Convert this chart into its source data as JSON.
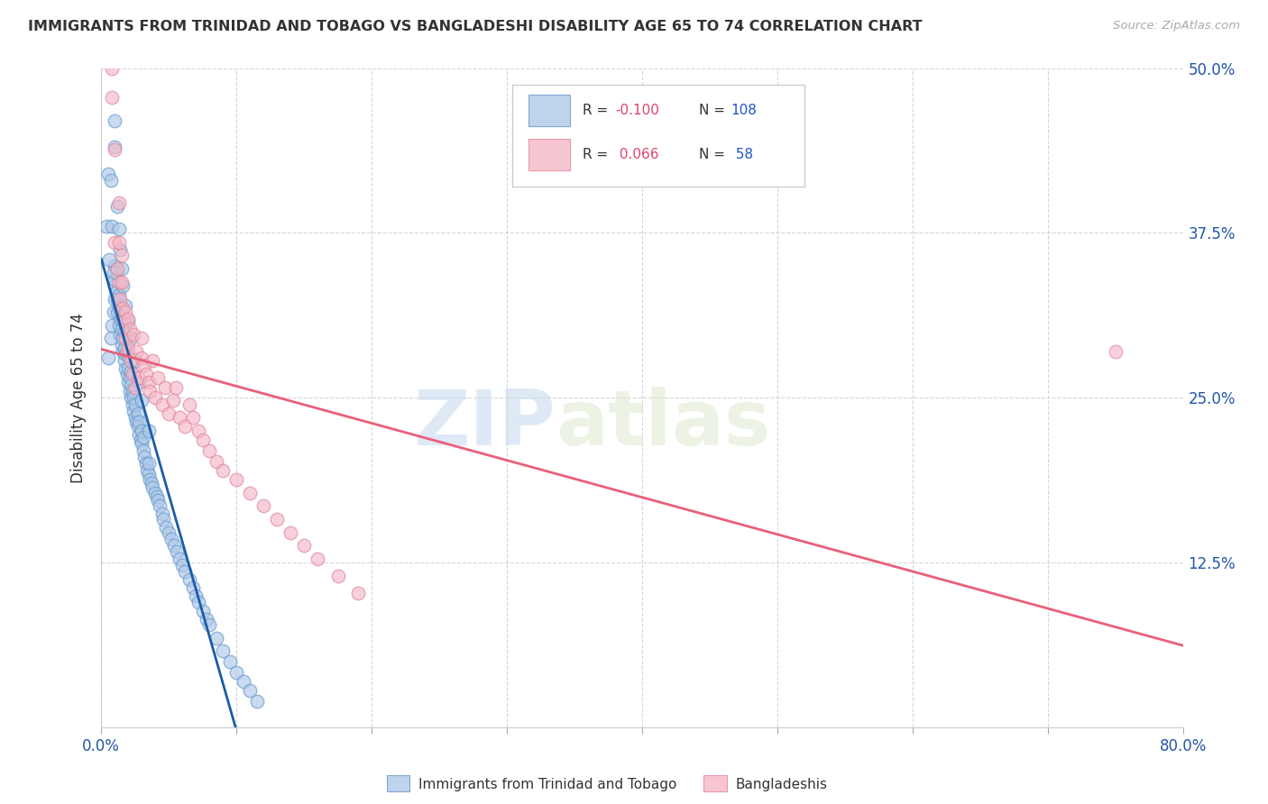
{
  "title": "IMMIGRANTS FROM TRINIDAD AND TOBAGO VS BANGLADESHI DISABILITY AGE 65 TO 74 CORRELATION CHART",
  "source": "Source: ZipAtlas.com",
  "ylabel": "Disability Age 65 to 74",
  "xlim": [
    0.0,
    0.8
  ],
  "ylim": [
    0.0,
    0.5
  ],
  "blue_color": "#aec8e8",
  "blue_edge_color": "#6699cc",
  "pink_color": "#f5b8c8",
  "pink_edge_color": "#e08898",
  "blue_line_color": "#1a5ca8",
  "blue_dash_color": "#99bbdd",
  "pink_line_color": "#e8607a",
  "r_blue_text": "-0.100",
  "n_blue_text": "108",
  "r_pink_text": "0.066",
  "n_pink_text": "58",
  "blue_scatter_x": [
    0.005,
    0.007,
    0.008,
    0.009,
    0.01,
    0.01,
    0.01,
    0.01,
    0.011,
    0.011,
    0.012,
    0.012,
    0.013,
    0.013,
    0.013,
    0.014,
    0.014,
    0.014,
    0.015,
    0.015,
    0.015,
    0.016,
    0.016,
    0.016,
    0.017,
    0.017,
    0.017,
    0.018,
    0.018,
    0.019,
    0.02,
    0.02,
    0.02,
    0.021,
    0.021,
    0.022,
    0.022,
    0.022,
    0.023,
    0.023,
    0.024,
    0.024,
    0.025,
    0.025,
    0.026,
    0.027,
    0.027,
    0.028,
    0.028,
    0.029,
    0.03,
    0.03,
    0.031,
    0.031,
    0.032,
    0.033,
    0.034,
    0.035,
    0.035,
    0.036,
    0.037,
    0.038,
    0.04,
    0.041,
    0.042,
    0.043,
    0.045,
    0.046,
    0.048,
    0.05,
    0.052,
    0.054,
    0.056,
    0.058,
    0.06,
    0.062,
    0.065,
    0.068,
    0.07,
    0.072,
    0.075,
    0.078,
    0.08,
    0.085,
    0.09,
    0.095,
    0.1,
    0.105,
    0.11,
    0.115,
    0.004,
    0.005,
    0.006,
    0.007,
    0.008,
    0.009,
    0.01,
    0.01,
    0.012,
    0.013,
    0.014,
    0.015,
    0.016,
    0.018,
    0.02,
    0.022,
    0.025,
    0.028,
    0.03,
    0.035
  ],
  "blue_scatter_y": [
    0.28,
    0.295,
    0.305,
    0.315,
    0.325,
    0.335,
    0.34,
    0.35,
    0.33,
    0.345,
    0.315,
    0.325,
    0.305,
    0.318,
    0.328,
    0.298,
    0.31,
    0.32,
    0.29,
    0.302,
    0.312,
    0.285,
    0.295,
    0.308,
    0.278,
    0.288,
    0.3,
    0.272,
    0.283,
    0.268,
    0.262,
    0.272,
    0.282,
    0.255,
    0.265,
    0.25,
    0.26,
    0.27,
    0.245,
    0.255,
    0.24,
    0.25,
    0.235,
    0.245,
    0.232,
    0.228,
    0.238,
    0.222,
    0.232,
    0.218,
    0.215,
    0.225,
    0.21,
    0.22,
    0.205,
    0.2,
    0.195,
    0.192,
    0.2,
    0.188,
    0.185,
    0.182,
    0.178,
    0.175,
    0.172,
    0.168,
    0.162,
    0.158,
    0.152,
    0.148,
    0.143,
    0.138,
    0.133,
    0.128,
    0.123,
    0.118,
    0.112,
    0.106,
    0.1,
    0.095,
    0.088,
    0.082,
    0.078,
    0.068,
    0.058,
    0.05,
    0.042,
    0.035,
    0.028,
    0.02,
    0.38,
    0.42,
    0.355,
    0.415,
    0.38,
    0.345,
    0.44,
    0.46,
    0.395,
    0.378,
    0.362,
    0.348,
    0.335,
    0.32,
    0.308,
    0.295,
    0.278,
    0.262,
    0.248,
    0.225
  ],
  "pink_scatter_x": [
    0.008,
    0.01,
    0.01,
    0.012,
    0.013,
    0.013,
    0.013,
    0.014,
    0.015,
    0.015,
    0.016,
    0.017,
    0.018,
    0.018,
    0.019,
    0.02,
    0.02,
    0.021,
    0.022,
    0.023,
    0.024,
    0.025,
    0.026,
    0.028,
    0.03,
    0.03,
    0.032,
    0.033,
    0.035,
    0.036,
    0.038,
    0.04,
    0.042,
    0.045,
    0.047,
    0.05,
    0.053,
    0.055,
    0.058,
    0.062,
    0.065,
    0.068,
    0.072,
    0.075,
    0.08,
    0.085,
    0.09,
    0.1,
    0.11,
    0.12,
    0.13,
    0.14,
    0.15,
    0.16,
    0.175,
    0.19,
    0.75,
    0.008
  ],
  "pink_scatter_y": [
    0.478,
    0.438,
    0.368,
    0.348,
    0.398,
    0.368,
    0.338,
    0.325,
    0.358,
    0.338,
    0.318,
    0.308,
    0.295,
    0.315,
    0.285,
    0.31,
    0.288,
    0.302,
    0.278,
    0.268,
    0.298,
    0.258,
    0.285,
    0.265,
    0.28,
    0.295,
    0.275,
    0.268,
    0.262,
    0.255,
    0.278,
    0.25,
    0.265,
    0.245,
    0.258,
    0.238,
    0.248,
    0.258,
    0.235,
    0.228,
    0.245,
    0.235,
    0.225,
    0.218,
    0.21,
    0.202,
    0.195,
    0.188,
    0.178,
    0.168,
    0.158,
    0.148,
    0.138,
    0.128,
    0.115,
    0.102,
    0.285,
    0.5
  ],
  "watermark_zip": "ZIP",
  "watermark_atlas": "atlas",
  "background_color": "#ffffff",
  "grid_color": "#cccccc",
  "legend_label_blue": "Immigrants from Trinidad and Tobago",
  "legend_label_pink": "Bangladeshis"
}
